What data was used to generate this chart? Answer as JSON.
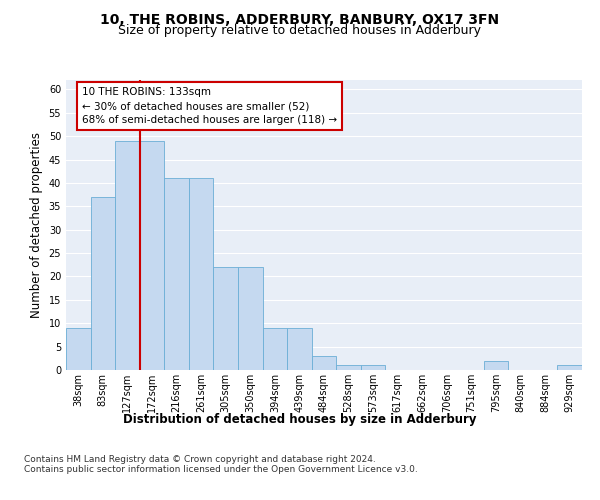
{
  "title": "10, THE ROBINS, ADDERBURY, BANBURY, OX17 3FN",
  "subtitle": "Size of property relative to detached houses in Adderbury",
  "xlabel": "Distribution of detached houses by size in Adderbury",
  "ylabel": "Number of detached properties",
  "bar_values": [
    9,
    37,
    49,
    49,
    41,
    41,
    22,
    22,
    9,
    9,
    3,
    1,
    1,
    0,
    0,
    0,
    0,
    2,
    0,
    0,
    1
  ],
  "x_labels": [
    "38sqm",
    "83sqm",
    "127sqm",
    "172sqm",
    "216sqm",
    "261sqm",
    "305sqm",
    "350sqm",
    "394sqm",
    "439sqm",
    "484sqm",
    "528sqm",
    "573sqm",
    "617sqm",
    "662sqm",
    "706sqm",
    "751sqm",
    "795sqm",
    "840sqm",
    "884sqm",
    "929sqm"
  ],
  "bar_color": "#c5d9f0",
  "bar_edge_color": "#6baed6",
  "bg_color": "#e8eef7",
  "grid_color": "#ffffff",
  "vline_color": "#cc0000",
  "annotation_box_color": "#cc0000",
  "annotation_text": "10 THE ROBINS: 133sqm\n← 30% of detached houses are smaller (52)\n68% of semi-detached houses are larger (118) →",
  "footer_text": "Contains HM Land Registry data © Crown copyright and database right 2024.\nContains public sector information licensed under the Open Government Licence v3.0.",
  "ylim": [
    0,
    62
  ],
  "yticks": [
    0,
    5,
    10,
    15,
    20,
    25,
    30,
    35,
    40,
    45,
    50,
    55,
    60
  ],
  "title_fontsize": 10,
  "subtitle_fontsize": 9,
  "ylabel_fontsize": 8.5,
  "xlabel_fontsize": 8.5,
  "tick_fontsize": 7,
  "ann_fontsize": 7.5,
  "footer_fontsize": 6.5,
  "vline_x_index": 2
}
